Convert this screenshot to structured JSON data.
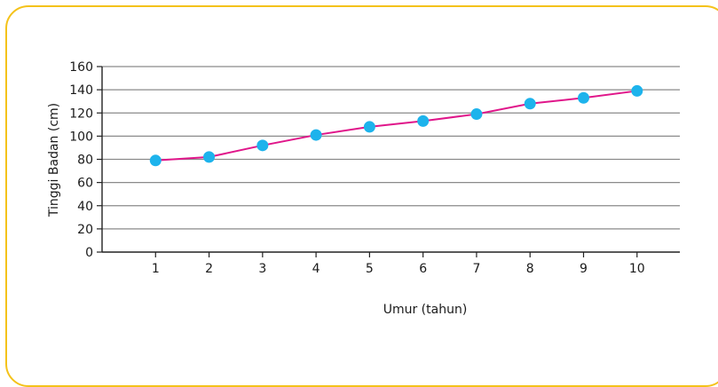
{
  "chart_data": {
    "type": "line",
    "title": "",
    "xlabel": "Umur (tahun)",
    "ylabel": "Tinggi Badan (cm)",
    "x": [
      1,
      2,
      3,
      4,
      5,
      6,
      7,
      8,
      9,
      10
    ],
    "x_ticks": [
      "1",
      "2",
      "3",
      "4",
      "5",
      "6",
      "7",
      "8",
      "9",
      "10"
    ],
    "y_ticks": [
      0,
      20,
      40,
      60,
      80,
      100,
      120,
      140,
      160
    ],
    "ylim": [
      0,
      160
    ],
    "xlim": [
      0,
      10.8
    ],
    "grid": "horizontal",
    "legend": "none",
    "series": [
      {
        "values": [
          79,
          82,
          92,
          101,
          108,
          113,
          119,
          128,
          133,
          139
        ]
      }
    ]
  },
  "colors": {
    "frame_border": "#f4c21a",
    "line": "#e0168a",
    "marker": "#1db3ec",
    "grid": "#8a8a8a",
    "axis": "#222222"
  }
}
